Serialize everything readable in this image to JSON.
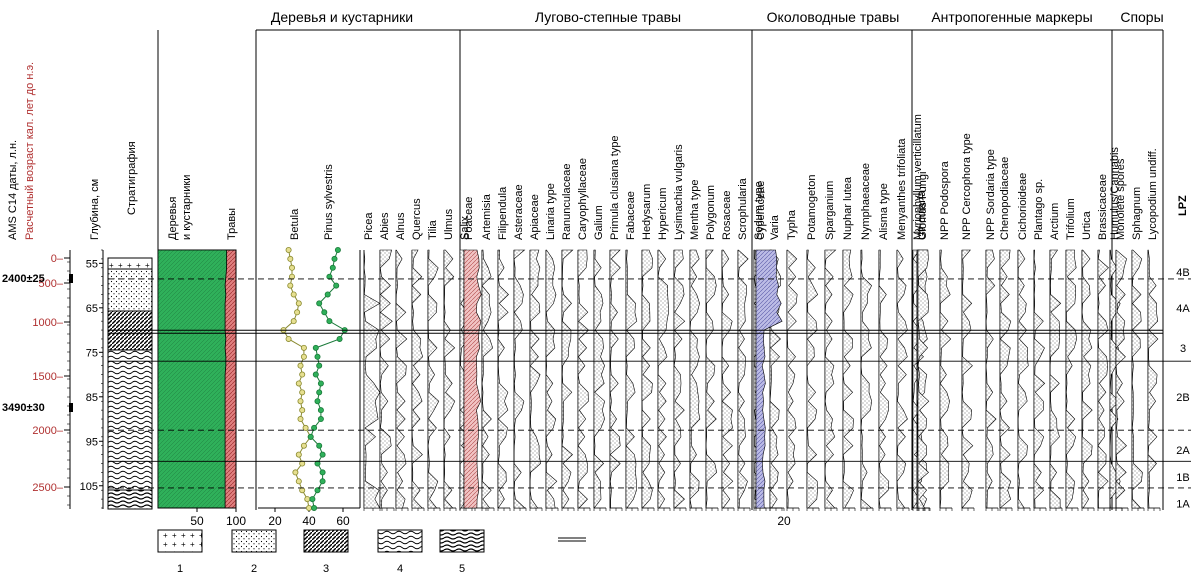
{
  "groups": [
    {
      "name": "Деревья и кустарники"
    },
    {
      "name": "Лугово-степные травы"
    },
    {
      "name": "Околоводные травы"
    },
    {
      "name": "Антропогенные маркеры"
    },
    {
      "name": "Споры"
    }
  ],
  "axes": {
    "ams_label": "AMS C14 даты, л.н.",
    "age_label": "Расчетный возраст кал. лет до н.э.",
    "depth_label": "Глубина, см",
    "strat_label": "Стратиграфия",
    "trees_label": "Деревья и кустарники",
    "herbs_label": "Травы",
    "lpz_label": "LPZ",
    "scale20": "20"
  },
  "ams_dates": [
    "2400±25",
    "3490±30"
  ],
  "legend": [
    "1",
    "2",
    "3",
    "4",
    "5"
  ],
  "chart_data": {
    "type": "pollen-diagram",
    "age_ticks": [
      "0",
      "500",
      "1000",
      "1500",
      "2000",
      "2500"
    ],
    "depth_ticks": [
      "55",
      "65",
      "75",
      "85",
      "95",
      "105"
    ],
    "depth": [
      52,
      54,
      56,
      58,
      60,
      62,
      64,
      66,
      68,
      70,
      72,
      74,
      76,
      78,
      80,
      82,
      84,
      86,
      88,
      90,
      92,
      94,
      96,
      98,
      100,
      102,
      104,
      106,
      108,
      110
    ],
    "trees_shrubs_pct": [
      88,
      88,
      88,
      87,
      86,
      87,
      86,
      86,
      86,
      86,
      87,
      86,
      87,
      87,
      86,
      86,
      86,
      86,
      86,
      86,
      86,
      86,
      86,
      86,
      86,
      86,
      86,
      86,
      86,
      86
    ],
    "trees_ticks": [
      "50",
      "100"
    ],
    "betula": [
      28,
      29,
      30,
      30,
      29,
      31,
      34,
      33,
      31,
      25,
      28,
      37,
      37,
      35,
      36,
      34,
      36,
      35,
      36,
      35,
      38,
      41,
      37,
      34,
      36,
      32,
      34,
      36,
      39,
      40
    ],
    "pinus": [
      57,
      55,
      54,
      52,
      56,
      51,
      46,
      49,
      52,
      61,
      58,
      44,
      45,
      46,
      44,
      47,
      46,
      45,
      47,
      47,
      43,
      41,
      46,
      48,
      45,
      48,
      48,
      45,
      42,
      43
    ],
    "curve_ticks": [
      "20",
      "40",
      "60"
    ],
    "curves": [
      {
        "name": "Picea"
      },
      {
        "name": "Abies"
      },
      {
        "name": "Alnus"
      },
      {
        "name": "Quercus"
      },
      {
        "name": "Tilia"
      },
      {
        "name": "Ulmus"
      },
      {
        "name": "Salix"
      },
      {
        "name": "Poaceae"
      },
      {
        "name": "Artemisia"
      },
      {
        "name": "Filipendula"
      },
      {
        "name": "Asteraceae"
      },
      {
        "name": "Apiaceae"
      },
      {
        "name": "Linaria type"
      },
      {
        "name": "Ranunculaceae"
      },
      {
        "name": "Caryophyllaceae"
      },
      {
        "name": "Galium"
      },
      {
        "name": "Primula clusiana type"
      },
      {
        "name": "Fabaceae"
      },
      {
        "name": "Hedysarum"
      },
      {
        "name": "Hypericum"
      },
      {
        "name": "Lysimachia vulgaris"
      },
      {
        "name": "Mentha type"
      },
      {
        "name": "Polygonum"
      },
      {
        "name": "Rosaceae"
      },
      {
        "name": "Scrophularia"
      },
      {
        "name": "Sedum type"
      },
      {
        "name": "Varia"
      },
      {
        "name": "Cyperaceae"
      },
      {
        "name": "Typha"
      },
      {
        "name": "Potamogeton"
      },
      {
        "name": "Sparganium"
      },
      {
        "name": "Nuphar lutea"
      },
      {
        "name": "Nymphaeaceae"
      },
      {
        "name": "Alisma type"
      },
      {
        "name": "Menyanthes trifoliata"
      },
      {
        "name": "Myriophyllum verticillatum"
      },
      {
        "name": "Utricularia"
      },
      {
        "name": "Glomus Fungi"
      },
      {
        "name": "NPP  Podospora"
      },
      {
        "name": "NPP Cercophora type"
      },
      {
        "name": "NPP Sordaria type"
      },
      {
        "name": "Chenopodiaceae"
      },
      {
        "name": "Cichorioideae"
      },
      {
        "name": "Plantago sp."
      },
      {
        "name": "Arctium"
      },
      {
        "name": "Trifolium"
      },
      {
        "name": "Urtica"
      },
      {
        "name": "Brassicaceae"
      },
      {
        "name": "Humulus/Cannabis"
      },
      {
        "name": "Monolete spores"
      },
      {
        "name": "Sphagnum"
      },
      {
        "name": "Lycopodium undiff."
      }
    ],
    "zones": [
      {
        "label": "4B",
        "depth": 57
      },
      {
        "label": "4A",
        "depth": 65
      },
      {
        "label": "3",
        "depth": 74
      },
      {
        "label": "2B",
        "depth": 85
      },
      {
        "label": "2A",
        "depth": 97
      },
      {
        "label": "1B",
        "depth": 103
      },
      {
        "label": "1A",
        "depth": 109
      }
    ],
    "zone_lines": [
      {
        "depth": 58.5,
        "style": "dashed"
      },
      {
        "depth": 70.5,
        "style": "double"
      },
      {
        "depth": 77,
        "style": "solid"
      },
      {
        "depth": 92.5,
        "style": "dashed"
      },
      {
        "depth": 99.5,
        "style": "solid"
      },
      {
        "depth": 105.5,
        "style": "dashed"
      }
    ]
  }
}
